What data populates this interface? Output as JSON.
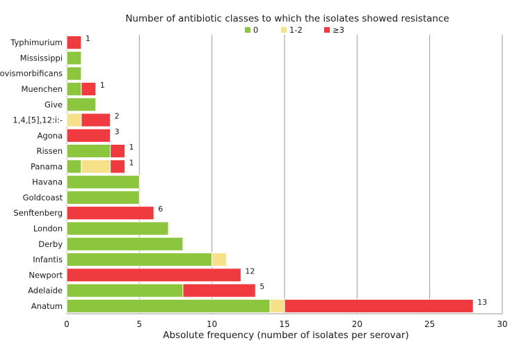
{
  "chart_data": {
    "type": "bar",
    "orientation": "horizontal",
    "stacked": true,
    "title": "Number of antibiotic classes to which the isolates showed resistance",
    "xlabel": "Absolute frequency (number of isolates per serovar)",
    "ylabel": "",
    "xlim": [
      0,
      30
    ],
    "xticks": [
      0,
      5,
      10,
      15,
      20,
      25,
      30
    ],
    "grid": true,
    "legend_position": "top",
    "categories": [
      "Typhimurium",
      "Mississippi",
      "Bovismorbificans",
      "Muenchen",
      "Give",
      "1,4,[5],12:i:-",
      "Agona",
      "Rissen",
      "Panama",
      "Havana",
      "Goldcoast",
      "Senftenberg",
      "London",
      "Derby",
      "Infantis",
      "Newport",
      "Adelaide",
      "Anatum"
    ],
    "series": [
      {
        "name": "0",
        "color": "#8cc63f",
        "values": [
          0,
          1,
          1,
          1,
          2,
          0,
          0,
          3,
          1,
          5,
          5,
          0,
          7,
          8,
          10,
          0,
          8,
          14
        ]
      },
      {
        "name": "1-2",
        "color": "#f7e08a",
        "values": [
          0,
          0,
          0,
          0,
          0,
          1,
          0,
          0,
          2,
          0,
          0,
          0,
          0,
          0,
          1,
          0,
          0,
          1
        ]
      },
      {
        "name": "≥3",
        "color": "#ef3a3f",
        "values": [
          1,
          0,
          0,
          1,
          0,
          2,
          3,
          1,
          1,
          0,
          0,
          6,
          0,
          0,
          0,
          12,
          5,
          13
        ]
      }
    ],
    "data_labels": [
      "1",
      "",
      "",
      "1",
      "",
      "2",
      "3",
      "1",
      "1",
      "",
      "",
      "6",
      "",
      "",
      "",
      "12",
      "5",
      "13"
    ]
  }
}
